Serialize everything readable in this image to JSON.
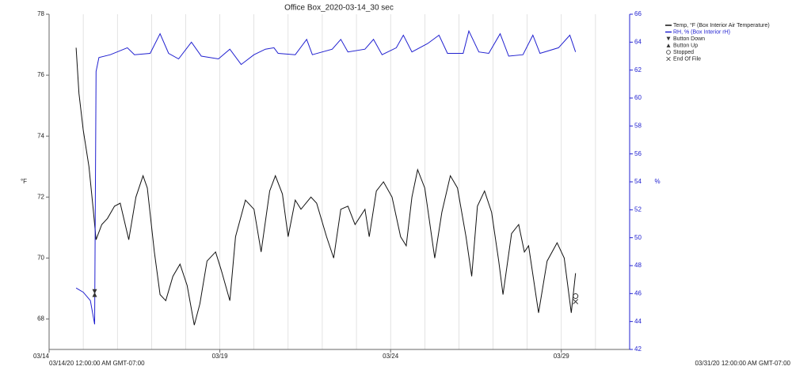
{
  "chart_data": {
    "type": "line",
    "title": "Office Box_2020-03-14_30 sec",
    "ylabel": "°F",
    "y2label": "%",
    "xlim": [
      "2020-03-14 00:00",
      "2020-03-31 00:00"
    ],
    "xlim_labels": [
      "03/14/20 12:00:00 AM GMT-07:00",
      "03/31/20 12:00:00 AM GMT-07:00"
    ],
    "xticks": [
      {
        "value": "2020-03-14 00:00",
        "label": "03/14"
      },
      {
        "value": "2020-03-19 00:00",
        "label": "03/19"
      },
      {
        "value": "2020-03-24 00:00",
        "label": "03/24"
      },
      {
        "value": "2020-03-29 00:00",
        "label": "03/29"
      }
    ],
    "xgrid": "day",
    "ylim": [
      67,
      78
    ],
    "yticks": [
      68,
      70,
      72,
      74,
      76,
      78
    ],
    "y2lim": [
      42,
      66
    ],
    "y2ticks": [
      42,
      44,
      46,
      48,
      50,
      52,
      54,
      56,
      58,
      60,
      62,
      64,
      66
    ],
    "series": [
      {
        "name": "Temp, °F (Box Interior Air Temperature)",
        "color": "#111111",
        "x": [
          "2020-03-14 19:00",
          "2020-03-14 21:00",
          "2020-03-15 00:00",
          "2020-03-15 04:00",
          "2020-03-15 07:00",
          "2020-03-15 09:00",
          "2020-03-15 13:00",
          "2020-03-15 17:00",
          "2020-03-15 22:00",
          "2020-03-16 02:00",
          "2020-03-16 08:00",
          "2020-03-16 13:00",
          "2020-03-16 18:00",
          "2020-03-16 21:00",
          "2020-03-17 02:00",
          "2020-03-17 06:00",
          "2020-03-17 10:00",
          "2020-03-17 15:00",
          "2020-03-17 20:00",
          "2020-03-18 01:00",
          "2020-03-18 06:00",
          "2020-03-18 10:00",
          "2020-03-18 15:00",
          "2020-03-18 21:00",
          "2020-03-19 01:00",
          "2020-03-19 07:00",
          "2020-03-19 11:00",
          "2020-03-19 18:00",
          "2020-03-20 00:00",
          "2020-03-20 05:00",
          "2020-03-20 11:00",
          "2020-03-20 15:00",
          "2020-03-20 20:00",
          "2020-03-21 00:00",
          "2020-03-21 05:00",
          "2020-03-21 09:00",
          "2020-03-21 16:00",
          "2020-03-21 20:00",
          "2020-03-22 03:00",
          "2020-03-22 08:00",
          "2020-03-22 13:00",
          "2020-03-22 18:00",
          "2020-03-22 23:00",
          "2020-03-23 06:00",
          "2020-03-23 09:00",
          "2020-03-23 14:00",
          "2020-03-23 19:00",
          "2020-03-24 01:00",
          "2020-03-24 07:00",
          "2020-03-24 11:00",
          "2020-03-24 15:00",
          "2020-03-24 19:00",
          "2020-03-25 00:00",
          "2020-03-25 07:00",
          "2020-03-25 12:00",
          "2020-03-25 18:00",
          "2020-03-25 23:00",
          "2020-03-26 05:00",
          "2020-03-26 09:00",
          "2020-03-26 13:00",
          "2020-03-26 18:00",
          "2020-03-26 23:00",
          "2020-03-27 04:00",
          "2020-03-27 07:00",
          "2020-03-27 13:00",
          "2020-03-27 18:00",
          "2020-03-27 22:00",
          "2020-03-28 01:00",
          "2020-03-28 08:00",
          "2020-03-28 14:00",
          "2020-03-28 21:00",
          "2020-03-29 02:00",
          "2020-03-29 07:00",
          "2020-03-29 10:00"
        ],
        "values": [
          76.9,
          75.4,
          74.2,
          73.0,
          71.6,
          70.6,
          71.1,
          71.3,
          71.7,
          71.8,
          70.6,
          72.0,
          72.7,
          72.3,
          70.2,
          68.8,
          68.6,
          69.4,
          69.8,
          69.1,
          67.8,
          68.5,
          69.9,
          70.2,
          69.6,
          68.6,
          70.7,
          71.9,
          71.6,
          70.2,
          72.2,
          72.7,
          72.1,
          70.7,
          71.9,
          71.6,
          72.0,
          71.8,
          70.7,
          70.0,
          71.6,
          71.7,
          71.1,
          71.6,
          70.7,
          72.2,
          72.5,
          72.0,
          70.7,
          70.4,
          72.0,
          72.9,
          72.3,
          70.0,
          71.5,
          72.7,
          72.3,
          70.7,
          69.4,
          71.7,
          72.2,
          71.5,
          69.9,
          68.8,
          70.8,
          71.1,
          70.2,
          70.4,
          68.2,
          69.9,
          70.5,
          70.0,
          68.2,
          69.5
        ]
      },
      {
        "name": "RH, % (Box Interior rH)",
        "color": "#2020d0",
        "axis": "y2",
        "x": [
          "2020-03-14 19:00",
          "2020-03-15 00:00",
          "2020-03-15 05:00",
          "2020-03-15 08:00",
          "2020-03-15 09:00",
          "2020-03-15 11:00",
          "2020-03-15 19:00",
          "2020-03-16 07:00",
          "2020-03-16 12:00",
          "2020-03-16 23:00",
          "2020-03-17 06:00",
          "2020-03-17 12:00",
          "2020-03-17 19:00",
          "2020-03-18 04:00",
          "2020-03-18 11:00",
          "2020-03-18 23:00",
          "2020-03-19 07:00",
          "2020-03-19 15:00",
          "2020-03-20 00:00",
          "2020-03-20 08:00",
          "2020-03-20 14:00",
          "2020-03-20 17:00",
          "2020-03-21 05:00",
          "2020-03-21 13:00",
          "2020-03-21 17:00",
          "2020-03-22 07:00",
          "2020-03-22 13:00",
          "2020-03-22 18:00",
          "2020-03-23 06:00",
          "2020-03-23 12:00",
          "2020-03-23 18:00",
          "2020-03-24 04:00",
          "2020-03-24 09:00",
          "2020-03-24 15:00",
          "2020-03-25 02:00",
          "2020-03-25 10:00",
          "2020-03-25 16:00",
          "2020-03-26 03:00",
          "2020-03-26 07:00",
          "2020-03-26 14:00",
          "2020-03-26 21:00",
          "2020-03-27 05:00",
          "2020-03-27 11:00",
          "2020-03-27 21:00",
          "2020-03-28 04:00",
          "2020-03-28 09:00",
          "2020-03-28 22:00",
          "2020-03-29 06:00",
          "2020-03-29 10:00"
        ],
        "values": [
          46.4,
          46.1,
          45.5,
          43.8,
          61.9,
          62.9,
          63.1,
          63.6,
          63.1,
          63.2,
          64.6,
          63.2,
          62.8,
          64.0,
          63.0,
          62.8,
          63.5,
          62.4,
          63.1,
          63.5,
          63.6,
          63.2,
          63.1,
          64.2,
          63.1,
          63.5,
          64.2,
          63.3,
          63.5,
          64.2,
          63.1,
          63.6,
          64.5,
          63.3,
          63.9,
          64.5,
          63.2,
          63.2,
          64.8,
          63.3,
          63.2,
          64.6,
          63.0,
          63.1,
          64.5,
          63.2,
          63.6,
          64.5,
          63.3
        ]
      }
    ],
    "markers": [
      {
        "name": "Button Down",
        "x": "2020-03-15 08:00",
        "value": 68.9
      },
      {
        "name": "Button Up",
        "x": "2020-03-15 08:00",
        "value": 68.8
      },
      {
        "name": "Stopped",
        "x": "2020-03-29 10:00",
        "value": 68.75
      },
      {
        "name": "End Of File",
        "x": "2020-03-29 10:00",
        "value": 68.57
      }
    ],
    "legend": "top-right"
  }
}
